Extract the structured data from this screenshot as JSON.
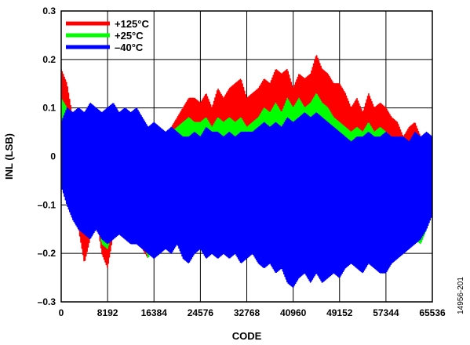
{
  "figure_id": "14956-201",
  "chart_data": {
    "type": "line",
    "title": "",
    "xlabel": "CODE",
    "ylabel": "INL (LSB)",
    "xlim": [
      0,
      65536
    ],
    "ylim": [
      -0.3,
      0.3
    ],
    "x_ticks": [
      0,
      8192,
      16384,
      24576,
      32768,
      40960,
      49152,
      57344,
      65536
    ],
    "y_ticks": [
      -0.3,
      -0.2,
      -0.1,
      0,
      0.1,
      0.2,
      0.3
    ],
    "y_tick_labels": [
      "–0.3",
      "–0.2",
      "–0.1",
      "0",
      "0.1",
      "0.2",
      "0.3"
    ],
    "grid": true,
    "legend_position": "top-left",
    "x": [
      0,
      1024,
      2048,
      3072,
      4096,
      5120,
      6144,
      7168,
      8192,
      9216,
      10240,
      11264,
      12288,
      13312,
      14336,
      15360,
      16384,
      17408,
      18432,
      19456,
      20480,
      21504,
      22528,
      23552,
      24576,
      25600,
      26624,
      27648,
      28672,
      29696,
      30720,
      31744,
      32768,
      33792,
      34816,
      35840,
      36864,
      37888,
      38912,
      39936,
      40960,
      41984,
      43008,
      44032,
      45056,
      46080,
      47104,
      48128,
      49152,
      50176,
      51200,
      52224,
      53248,
      54272,
      55296,
      56320,
      57344,
      58368,
      59392,
      60416,
      61440,
      62464,
      63488,
      64512,
      65536
    ],
    "series": [
      {
        "name": "+125°C",
        "color": "#ff0000",
        "upper": [
          0.18,
          0.15,
          0.08,
          0.02,
          -0.02,
          -0.05,
          -0.03,
          -0.06,
          -0.05,
          -0.06,
          -0.03,
          -0.02,
          -0.02,
          -0.03,
          -0.02,
          -0.01,
          -0.01,
          0.02,
          0.04,
          0.06,
          0.08,
          0.1,
          0.12,
          0.12,
          0.11,
          0.13,
          0.1,
          0.14,
          0.12,
          0.14,
          0.15,
          0.16,
          0.12,
          0.13,
          0.14,
          0.16,
          0.15,
          0.18,
          0.17,
          0.18,
          0.14,
          0.17,
          0.16,
          0.17,
          0.21,
          0.18,
          0.17,
          0.15,
          0.15,
          0.13,
          0.1,
          0.12,
          0.09,
          0.13,
          0.1,
          0.11,
          0.1,
          0.08,
          0.07,
          0.04,
          0.06,
          0.07,
          0.04,
          0.03,
          0.02
        ],
        "lower": [
          0.02,
          -0.05,
          -0.09,
          -0.15,
          -0.22,
          -0.17,
          -0.12,
          -0.2,
          -0.23,
          -0.16,
          -0.12,
          -0.1,
          -0.14,
          -0.13,
          -0.19,
          -0.21,
          -0.17,
          -0.14,
          -0.11,
          -0.1,
          -0.09,
          -0.05,
          -0.04,
          -0.06,
          -0.08,
          -0.06,
          -0.05,
          -0.06,
          -0.03,
          -0.05,
          -0.04,
          -0.04,
          -0.08,
          -0.06,
          -0.02,
          -0.03,
          -0.04,
          -0.05,
          -0.04,
          -0.03,
          -0.06,
          -0.02,
          -0.04,
          -0.07,
          -0.02,
          -0.08,
          -0.05,
          -0.06,
          -0.12,
          -0.08,
          -0.06,
          -0.05,
          -0.07,
          -0.05,
          -0.06,
          -0.1,
          -0.12,
          -0.1,
          -0.08,
          -0.09,
          -0.08,
          -0.07,
          -0.12,
          -0.09,
          -0.05
        ]
      },
      {
        "name": "+25°C",
        "color": "#00ff00",
        "upper": [
          0.12,
          0.1,
          0.05,
          0.04,
          -0.01,
          -0.03,
          -0.02,
          -0.04,
          -0.02,
          -0.01,
          -0.01,
          0.0,
          0.01,
          0.01,
          0.02,
          0.02,
          0.03,
          0.04,
          0.05,
          0.05,
          0.06,
          0.07,
          0.08,
          0.07,
          0.07,
          0.08,
          0.06,
          0.08,
          0.07,
          0.08,
          0.07,
          0.08,
          0.06,
          0.07,
          0.08,
          0.1,
          0.09,
          0.11,
          0.09,
          0.12,
          0.1,
          0.12,
          0.1,
          0.11,
          0.13,
          0.11,
          0.1,
          0.08,
          0.07,
          0.06,
          0.05,
          0.06,
          0.05,
          0.07,
          0.05,
          0.06,
          0.05,
          0.04,
          0.03,
          0.02,
          0.03,
          0.04,
          0.03,
          0.02,
          0.01
        ],
        "lower": [
          0.0,
          -0.04,
          -0.07,
          -0.11,
          -0.15,
          -0.13,
          -0.12,
          -0.18,
          -0.19,
          -0.15,
          -0.13,
          -0.12,
          -0.14,
          -0.14,
          -0.17,
          -0.21,
          -0.18,
          -0.16,
          -0.15,
          -0.14,
          -0.12,
          -0.11,
          -0.1,
          -0.12,
          -0.14,
          -0.13,
          -0.12,
          -0.14,
          -0.12,
          -0.14,
          -0.13,
          -0.12,
          -0.16,
          -0.14,
          -0.13,
          -0.14,
          -0.15,
          -0.16,
          -0.17,
          -0.19,
          -0.22,
          -0.18,
          -0.17,
          -0.2,
          -0.17,
          -0.2,
          -0.18,
          -0.19,
          -0.21,
          -0.18,
          -0.17,
          -0.16,
          -0.18,
          -0.17,
          -0.18,
          -0.2,
          -0.22,
          -0.19,
          -0.17,
          -0.18,
          -0.16,
          -0.17,
          -0.18,
          -0.15,
          -0.1
        ]
      },
      {
        "name": "–40°C",
        "color": "#0000ff",
        "upper": [
          0.07,
          0.1,
          0.09,
          0.1,
          0.09,
          0.11,
          0.1,
          0.09,
          0.1,
          0.11,
          0.09,
          0.1,
          0.09,
          0.1,
          0.08,
          0.06,
          0.07,
          0.06,
          0.05,
          0.06,
          0.05,
          0.04,
          0.04,
          0.05,
          0.04,
          0.06,
          0.05,
          0.05,
          0.04,
          0.05,
          0.04,
          0.05,
          0.05,
          0.05,
          0.06,
          0.07,
          0.06,
          0.07,
          0.06,
          0.08,
          0.07,
          0.08,
          0.09,
          0.08,
          0.09,
          0.08,
          0.07,
          0.06,
          0.05,
          0.04,
          0.03,
          0.04,
          0.04,
          0.05,
          0.04,
          0.04,
          0.05,
          0.04,
          0.04,
          0.04,
          0.03,
          0.05,
          0.04,
          0.05,
          0.04
        ],
        "lower": [
          -0.06,
          -0.1,
          -0.13,
          -0.15,
          -0.16,
          -0.17,
          -0.15,
          -0.17,
          -0.18,
          -0.17,
          -0.16,
          -0.17,
          -0.18,
          -0.18,
          -0.19,
          -0.2,
          -0.21,
          -0.2,
          -0.19,
          -0.2,
          -0.18,
          -0.21,
          -0.22,
          -0.2,
          -0.19,
          -0.21,
          -0.2,
          -0.21,
          -0.2,
          -0.21,
          -0.2,
          -0.22,
          -0.21,
          -0.2,
          -0.22,
          -0.23,
          -0.22,
          -0.24,
          -0.23,
          -0.26,
          -0.27,
          -0.25,
          -0.24,
          -0.26,
          -0.24,
          -0.26,
          -0.25,
          -0.24,
          -0.25,
          -0.23,
          -0.22,
          -0.23,
          -0.24,
          -0.22,
          -0.23,
          -0.24,
          -0.24,
          -0.22,
          -0.21,
          -0.2,
          -0.19,
          -0.18,
          -0.17,
          -0.15,
          -0.12
        ]
      }
    ]
  }
}
